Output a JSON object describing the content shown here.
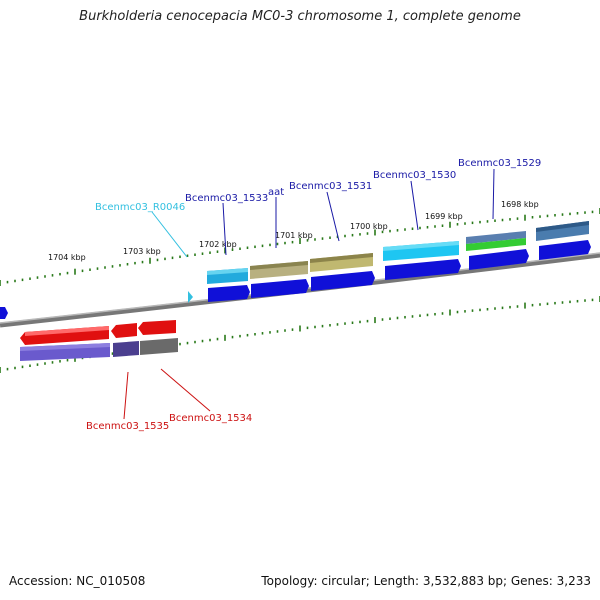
{
  "title": "Burkholderia cenocepacia MC0-3 chromosome 1, complete genome",
  "accession": "Accession: NC_010508",
  "stats": "Topology: circular; Length: 3,532,883 bp; Genes: 3,233",
  "scale_labels": [
    "1704 kbp",
    "1703 kbp",
    "1702 kbp",
    "1701 kbp",
    "1700 kbp",
    "1699 kbp",
    "1698 kbp"
  ],
  "gene_labels": {
    "r0046": "Bcenmc03_R0046",
    "b1533": "Bcenmc03_1533",
    "aat": "aat",
    "b1531": "Bcenmc03_1531",
    "b1530": "Bcenmc03_1530",
    "b1529": "Bcenmc03_1529",
    "b1535": "Bcenmc03_1535",
    "b1534": "Bcenmc03_1534"
  },
  "colors": {
    "backbone": "#888888",
    "tick": "#2a7a1a",
    "forward_label": "#1a1aa6",
    "rna_label": "#33c0e0",
    "reverse_label": "#cc1111"
  }
}
